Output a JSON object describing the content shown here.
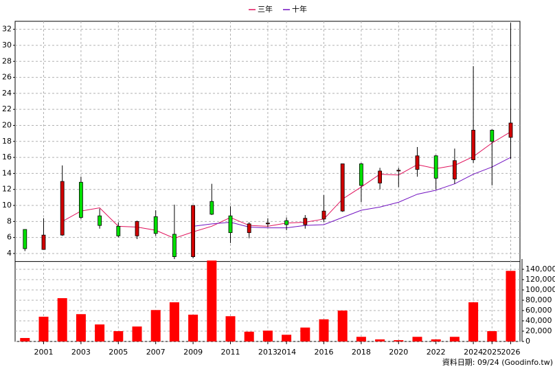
{
  "chart_data": {
    "type": "candlestick",
    "categories": [
      null,
      "2001",
      null,
      "2003",
      null,
      "2005",
      null,
      "2007",
      null,
      "2009",
      null,
      "2011",
      null,
      "2013",
      "2014",
      null,
      "2016",
      null,
      "2018",
      null,
      "2020",
      null,
      "2022",
      null,
      "2024",
      "2025",
      "2026"
    ],
    "open": [
      7.0,
      4.5,
      6.3,
      12.9,
      8.7,
      7.4,
      6.2,
      8.6,
      6.4,
      3.6,
      10.5,
      8.7,
      6.6,
      7.7,
      8.1,
      7.6,
      8.3,
      9.3,
      15.2,
      12.8,
      14.3,
      14.5,
      16.2,
      13.3,
      15.7,
      19.4,
      18.5
    ],
    "high": [
      7.0,
      8.4,
      15.0,
      13.6,
      9.6,
      7.9,
      8.1,
      9.4,
      10.1,
      10.0,
      12.7,
      9.9,
      7.9,
      8.4,
      8.5,
      8.8,
      11.3,
      15.2,
      15.3,
      14.7,
      14.7,
      17.3,
      16.3,
      17.1,
      27.4,
      19.5,
      32.8
    ],
    "low": [
      4.3,
      4.5,
      6.2,
      8.3,
      7.1,
      6.0,
      5.8,
      6.2,
      3.3,
      3.4,
      8.8,
      5.3,
      5.9,
      7.3,
      6.9,
      7.1,
      7.9,
      9.2,
      10.4,
      12.0,
      12.3,
      13.6,
      12.0,
      12.7,
      15.3,
      12.5,
      15.8
    ],
    "close": [
      4.6,
      6.3,
      13.0,
      8.5,
      7.5,
      6.2,
      8.0,
      6.5,
      3.6,
      10.0,
      8.9,
      6.6,
      7.7,
      7.8,
      7.6,
      8.4,
      9.3,
      15.2,
      12.5,
      14.3,
      14.4,
      16.2,
      13.4,
      15.6,
      19.4,
      18.0,
      20.3
    ],
    "up_color": "#d00000",
    "down_color": "#00e000",
    "series": [
      {
        "name": "三年",
        "color": "#e0105a",
        "values": [
          null,
          null,
          8.0,
          9.3,
          9.7,
          7.4,
          7.3,
          6.9,
          5.9,
          6.7,
          7.4,
          8.5,
          7.5,
          7.4,
          7.8,
          7.9,
          8.3,
          10.8,
          12.3,
          13.9,
          13.8,
          15.1,
          14.6,
          15.0,
          16.1,
          17.8,
          19.2
        ]
      },
      {
        "name": "十年",
        "color": "#7010c0",
        "values": [
          null,
          null,
          null,
          null,
          null,
          null,
          null,
          null,
          null,
          7.4,
          7.7,
          7.9,
          7.3,
          7.2,
          7.2,
          7.5,
          7.6,
          8.5,
          9.4,
          9.8,
          10.4,
          11.4,
          11.9,
          12.7,
          13.9,
          14.8,
          16.0
        ]
      }
    ],
    "ylim": [
      3,
      33
    ],
    "yticks": [
      4,
      6,
      8,
      10,
      12,
      14,
      16,
      18,
      20,
      22,
      24,
      26,
      28,
      30,
      32
    ],
    "grid": true,
    "volume": {
      "color": "#ff0000",
      "values": [
        6700,
        48000,
        84000,
        53000,
        33000,
        20000,
        29000,
        61000,
        76000,
        52000,
        157000,
        49000,
        19000,
        21000,
        13000,
        27000,
        43000,
        60000,
        9000,
        4000,
        2500,
        9000,
        4000,
        9000,
        76000,
        20000,
        137000
      ],
      "ylim": [
        0,
        160000
      ],
      "yticks": [
        0,
        {
          "value": 20000,
          "label": "20,000"
        },
        {
          "value": 40000,
          "label": "40,000"
        },
        {
          "value": 60000,
          "label": "60,000"
        },
        {
          "value": 80000,
          "label": "80,000"
        },
        {
          "value": 100000,
          "label": "100,000"
        },
        {
          "value": 120000,
          "label": "120,000"
        },
        {
          "value": 140000,
          "label": "140,000"
        }
      ]
    },
    "footer": "資料日期: 09/24  (Goodinfo.tw)"
  }
}
